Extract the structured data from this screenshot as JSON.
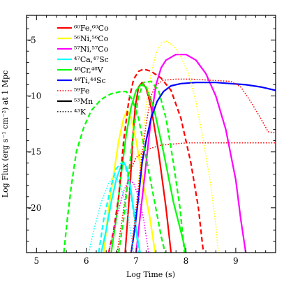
{
  "chart_data": {
    "type": "line",
    "xlabel": "Log Time (s)",
    "ylabel": "Log Flux (erg s⁻¹ cm⁻²) at 1 Mpc",
    "xlim": [
      4.8,
      9.8
    ],
    "ylim": [
      -24,
      -2.8
    ],
    "x_ticks": [
      5,
      6,
      7,
      8,
      9
    ],
    "y_ticks": [
      -5,
      -10,
      -15,
      -20
    ],
    "grid": false,
    "legend_position": "top-left",
    "series": [
      {
        "name": "⁶⁰Fe,⁶⁰Co",
        "color": "#ff0000",
        "style": "solid",
        "points": [
          [
            6.78,
            -24
          ],
          [
            6.83,
            -21
          ],
          [
            6.88,
            -18
          ],
          [
            6.93,
            -14
          ],
          [
            6.98,
            -11
          ],
          [
            7.05,
            -9.2
          ],
          [
            7.12,
            -8.8
          ],
          [
            7.2,
            -9.3
          ],
          [
            7.3,
            -11
          ],
          [
            7.45,
            -15
          ],
          [
            7.6,
            -20
          ],
          [
            7.7,
            -24
          ]
        ]
      },
      {
        "name": "⁵⁶Ni,⁵⁶Co",
        "color": "#ffff00",
        "style": "solid",
        "points": [
          [
            6.35,
            -24
          ],
          [
            6.45,
            -20
          ],
          [
            6.55,
            -17
          ],
          [
            6.65,
            -14
          ],
          [
            6.75,
            -12
          ],
          [
            6.82,
            -11.3
          ],
          [
            6.9,
            -12
          ],
          [
            7.0,
            -14
          ],
          [
            7.15,
            -18
          ],
          [
            7.28,
            -21
          ],
          [
            7.38,
            -24
          ]
        ]
      },
      {
        "name": "⁵⁷Ni,⁵⁷Co",
        "color": "#ff00ff",
        "style": "solid",
        "points": [
          [
            7.0,
            -24
          ],
          [
            7.1,
            -20
          ],
          [
            7.2,
            -16
          ],
          [
            7.3,
            -12
          ],
          [
            7.4,
            -9
          ],
          [
            7.5,
            -7.5
          ],
          [
            7.6,
            -6.8
          ],
          [
            7.8,
            -6.3
          ],
          [
            8.0,
            -6.3
          ],
          [
            8.2,
            -6.8
          ],
          [
            8.4,
            -8
          ],
          [
            8.6,
            -10
          ],
          [
            8.8,
            -13
          ],
          [
            9.0,
            -17.5
          ],
          [
            9.1,
            -21
          ],
          [
            9.2,
            -24
          ]
        ]
      },
      {
        "name": "⁴⁷Ca,⁴⁷Sc",
        "color": "#00ffff",
        "style": "solid",
        "points": [
          [
            6.3,
            -24
          ],
          [
            6.4,
            -22
          ],
          [
            6.5,
            -19.5
          ],
          [
            6.6,
            -17.5
          ],
          [
            6.7,
            -16.2
          ],
          [
            6.75,
            -15.9
          ],
          [
            6.82,
            -16.5
          ],
          [
            6.9,
            -18.5
          ],
          [
            6.97,
            -20.8
          ],
          [
            7.02,
            -22.5
          ],
          [
            7.08,
            -24
          ]
        ]
      },
      {
        "name": "⁴⁸Cr,⁴⁸V",
        "color": "#00ff00",
        "style": "solid",
        "points": [
          [
            6.5,
            -24
          ],
          [
            6.6,
            -21
          ],
          [
            6.7,
            -17
          ],
          [
            6.8,
            -13.5
          ],
          [
            6.9,
            -11
          ],
          [
            7.0,
            -9.5
          ],
          [
            7.1,
            -9.0
          ],
          [
            7.2,
            -9.2
          ],
          [
            7.35,
            -11
          ],
          [
            7.55,
            -15
          ],
          [
            7.75,
            -19.5
          ],
          [
            7.92,
            -22.5
          ],
          [
            8.0,
            -24
          ]
        ]
      },
      {
        "name": "⁴⁴Ti,⁴⁴Sc",
        "color": "#0000ff",
        "style": "solid",
        "points": [
          [
            6.9,
            -24
          ],
          [
            6.97,
            -22
          ],
          [
            7.05,
            -19
          ],
          [
            7.12,
            -16
          ],
          [
            7.2,
            -14
          ],
          [
            7.3,
            -12
          ],
          [
            7.42,
            -10.5
          ],
          [
            7.55,
            -9.6
          ],
          [
            7.7,
            -9.1
          ],
          [
            7.9,
            -8.9
          ],
          [
            8.2,
            -8.8
          ],
          [
            8.6,
            -8.8
          ],
          [
            8.9,
            -8.9
          ],
          [
            9.2,
            -9.0
          ],
          [
            9.5,
            -9.2
          ],
          [
            9.8,
            -9.5
          ]
        ]
      },
      {
        "name": "⁵⁹Fe",
        "color": "#ff0000",
        "style": "dotted",
        "points": [
          [
            6.62,
            -24
          ],
          [
            6.72,
            -21
          ],
          [
            6.85,
            -17
          ],
          [
            7.0,
            -15.5
          ],
          [
            7.2,
            -14.8
          ],
          [
            7.5,
            -14.4
          ],
          [
            8.0,
            -14.2
          ],
          [
            8.5,
            -14.2
          ],
          [
            9.0,
            -14.2
          ],
          [
            9.5,
            -14.2
          ],
          [
            9.8,
            -14.2
          ]
        ]
      },
      {
        "name": "⁵³Mn",
        "color": "#000000",
        "style": "solid",
        "points": []
      },
      {
        "name": "⁴³K",
        "color": "#000000",
        "style": "dotted",
        "points": []
      },
      {
        "color": "#ff0000",
        "style": "dashed",
        "points": [
          [
            6.45,
            -24
          ],
          [
            6.55,
            -22
          ],
          [
            6.65,
            -19
          ],
          [
            6.75,
            -14
          ],
          [
            6.85,
            -10.5
          ],
          [
            6.95,
            -8.5
          ],
          [
            7.05,
            -7.8
          ],
          [
            7.15,
            -7.6
          ],
          [
            7.3,
            -7.8
          ],
          [
            7.5,
            -8.4
          ],
          [
            7.7,
            -9.5
          ],
          [
            7.9,
            -12
          ],
          [
            8.1,
            -16
          ],
          [
            8.25,
            -20
          ],
          [
            8.35,
            -24
          ]
        ]
      },
      {
        "color": "#00ff00",
        "style": "dashed",
        "points": [
          [
            5.55,
            -24
          ],
          [
            5.62,
            -21
          ],
          [
            5.7,
            -18
          ],
          [
            5.8,
            -15
          ],
          [
            5.95,
            -12.8
          ],
          [
            6.1,
            -11.3
          ],
          [
            6.3,
            -10.3
          ],
          [
            6.5,
            -9.8
          ],
          [
            6.7,
            -9.6
          ],
          [
            6.8,
            -9.6
          ],
          [
            6.92,
            -10.3
          ],
          [
            7.05,
            -12
          ],
          [
            7.2,
            -15.5
          ],
          [
            7.35,
            -19
          ],
          [
            7.5,
            -22.5
          ],
          [
            7.58,
            -24
          ]
        ]
      },
      {
        "color": "#00ffff",
        "style": "dashed",
        "points": [
          [
            6.25,
            -24
          ],
          [
            6.35,
            -21
          ],
          [
            6.5,
            -18
          ],
          [
            6.6,
            -16.5
          ],
          [
            6.7,
            -16
          ],
          [
            6.78,
            -16.2
          ],
          [
            6.85,
            -17.5
          ],
          [
            6.92,
            -19.5
          ],
          [
            7.0,
            -22
          ],
          [
            7.05,
            -24
          ]
        ]
      },
      {
        "color": "#00ff00",
        "style": "dashed",
        "points": [
          [
            6.65,
            -24
          ],
          [
            6.75,
            -21
          ],
          [
            6.85,
            -17
          ],
          [
            6.95,
            -13
          ],
          [
            7.05,
            -10
          ],
          [
            7.15,
            -8.8
          ],
          [
            7.3,
            -8.7
          ],
          [
            7.45,
            -9.5
          ],
          [
            7.6,
            -12
          ],
          [
            7.75,
            -16
          ],
          [
            7.88,
            -20
          ],
          [
            7.97,
            -24
          ]
        ]
      },
      {
        "color": "#ffff00",
        "style": "dotted",
        "points": [
          [
            6.9,
            -24
          ],
          [
            7.0,
            -20
          ],
          [
            7.1,
            -15
          ],
          [
            7.2,
            -11
          ],
          [
            7.3,
            -8
          ],
          [
            7.4,
            -6.2
          ],
          [
            7.5,
            -5.3
          ],
          [
            7.6,
            -5.1
          ],
          [
            7.75,
            -5.5
          ],
          [
            7.9,
            -6.5
          ],
          [
            8.05,
            -8
          ],
          [
            8.2,
            -10.5
          ],
          [
            8.35,
            -14
          ],
          [
            8.5,
            -18
          ],
          [
            8.6,
            -21.5
          ],
          [
            8.65,
            -24
          ]
        ]
      },
      {
        "color": "#ff0000",
        "style": "dotted",
        "points": [
          [
            6.9,
            -24
          ],
          [
            7.0,
            -20
          ],
          [
            7.1,
            -16
          ],
          [
            7.2,
            -12.5
          ],
          [
            7.3,
            -10
          ],
          [
            7.4,
            -9
          ],
          [
            7.55,
            -8.6
          ],
          [
            7.8,
            -8.5
          ],
          [
            8.1,
            -8.5
          ],
          [
            8.5,
            -8.6
          ],
          [
            8.9,
            -8.7
          ],
          [
            9.1,
            -9.2
          ],
          [
            9.3,
            -10.5
          ],
          [
            9.5,
            -12
          ],
          [
            9.65,
            -13.2
          ],
          [
            9.8,
            -13.3
          ]
        ]
      },
      {
        "color": "#ff00ff",
        "style": "dotted",
        "points": [
          [
            6.45,
            -24
          ],
          [
            6.6,
            -21
          ],
          [
            6.75,
            -18.5
          ],
          [
            6.85,
            -17.5
          ],
          [
            6.95,
            -17.8
          ],
          [
            7.05,
            -19
          ],
          [
            7.15,
            -21
          ],
          [
            7.25,
            -24
          ]
        ]
      },
      {
        "color": "#00ffff",
        "style": "dotted",
        "points": [
          [
            6.05,
            -24
          ],
          [
            6.15,
            -22
          ],
          [
            6.3,
            -19.5
          ],
          [
            6.45,
            -17.8
          ],
          [
            6.55,
            -17.2
          ],
          [
            6.65,
            -17.6
          ],
          [
            6.75,
            -19
          ],
          [
            6.85,
            -21
          ],
          [
            6.95,
            -24
          ]
        ]
      }
    ]
  }
}
